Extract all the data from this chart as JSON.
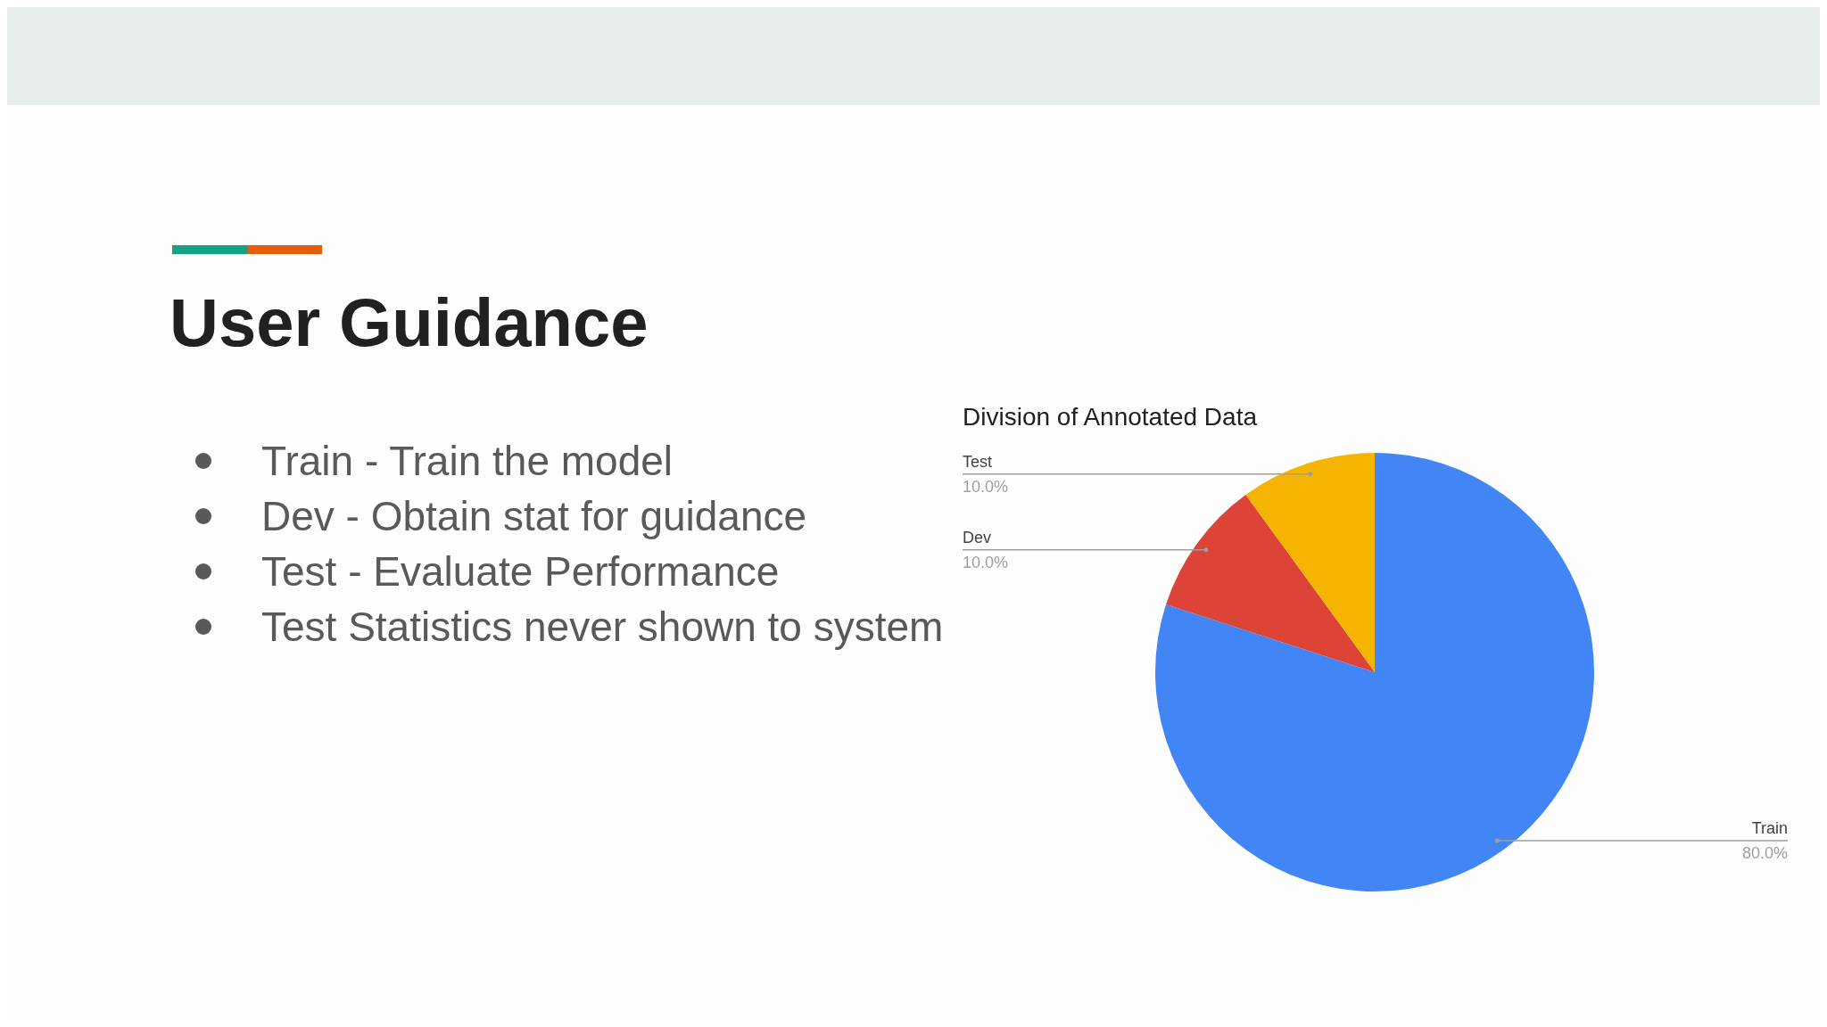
{
  "chart_data": {
    "type": "pie",
    "title": "User Guidance",
    "subtitle": "Division of Annotated Data",
    "annotations": [
      "Train - Train the model",
      "Dev - Obtain stat for guidance",
      "Test - Evaluate Performance",
      "Test Statistics never shown to system"
    ],
    "categories": [
      "Train",
      "Dev",
      "Test"
    ],
    "values": [
      80,
      10,
      10
    ],
    "value_labels": [
      "80.0%",
      "10.0%",
      "10.0%"
    ],
    "colors": [
      "#4285f4",
      "#db4437",
      "#f4b400"
    ],
    "legend": false
  }
}
